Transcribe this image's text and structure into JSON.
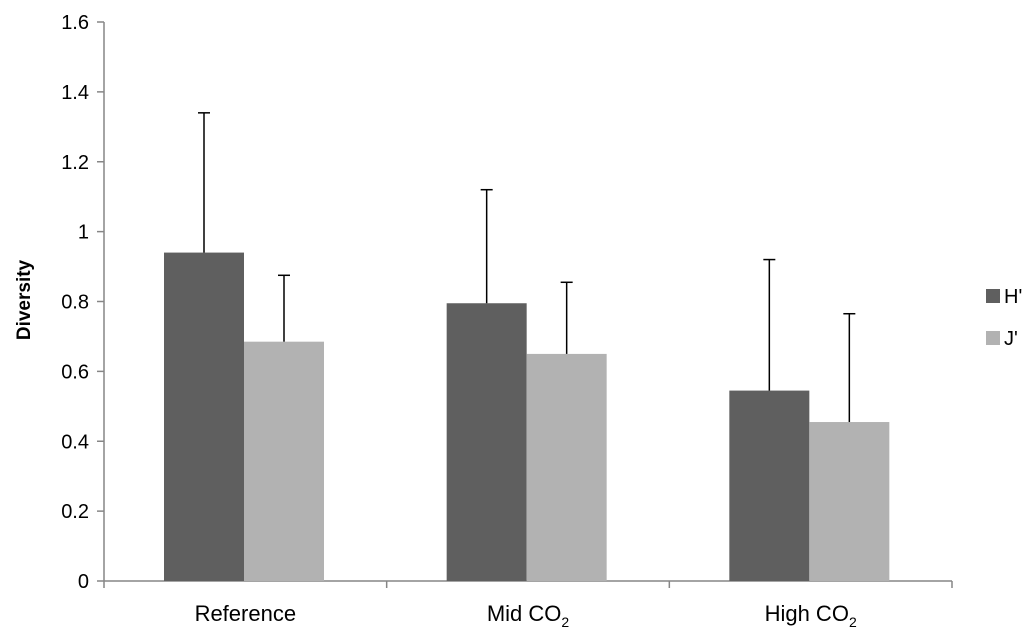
{
  "chart_data": {
    "type": "bar",
    "title": "",
    "xlabel": "",
    "ylabel": "Diversity",
    "ylim": [
      0,
      1.6
    ],
    "yticks": [
      "0",
      "0.2",
      "0.4",
      "0.6",
      "0.8",
      "1",
      "1.2",
      "1.4",
      "1.6"
    ],
    "categories": [
      {
        "base": "Reference",
        "sub": ""
      },
      {
        "base": "Mid CO",
        "sub": "2"
      },
      {
        "base": "High CO",
        "sub": "2"
      }
    ],
    "series": [
      {
        "name": "H'",
        "color": "#5f5f5f",
        "values": [
          0.94,
          0.795,
          0.545
        ],
        "error_plus": [
          0.4,
          0.325,
          0.375
        ]
      },
      {
        "name": "J'",
        "color": "#b2b2b2",
        "values": [
          0.685,
          0.65,
          0.455
        ],
        "error_plus": [
          0.19,
          0.205,
          0.31
        ]
      }
    ],
    "grid": false,
    "legend_position": "right"
  }
}
